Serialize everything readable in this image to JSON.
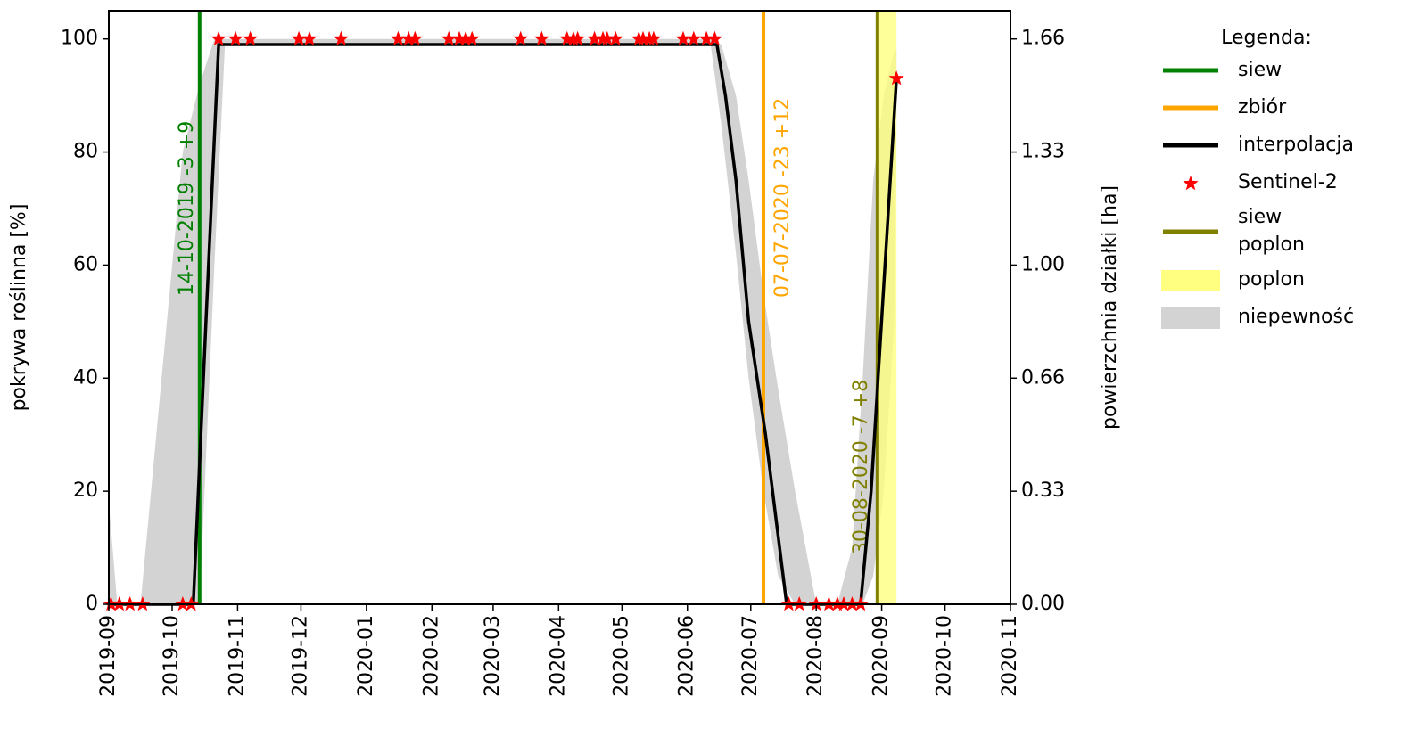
{
  "chart_data": {
    "type": "line",
    "y_label": "pokrywa roślinna [%]",
    "y2_label": "powierzchnia działki [ha]",
    "xlim": [
      18140,
      18567
    ],
    "xticks": [
      {
        "value": 18140,
        "label": "2019-09"
      },
      {
        "value": 18170,
        "label": "2019-10"
      },
      {
        "value": 18201,
        "label": "2019-11"
      },
      {
        "value": 18231,
        "label": "2019-12"
      },
      {
        "value": 18262,
        "label": "2020-01"
      },
      {
        "value": 18293,
        "label": "2020-02"
      },
      {
        "value": 18322,
        "label": "2020-03"
      },
      {
        "value": 18353,
        "label": "2020-04"
      },
      {
        "value": 18383,
        "label": "2020-05"
      },
      {
        "value": 18414,
        "label": "2020-06"
      },
      {
        "value": 18444,
        "label": "2020-07"
      },
      {
        "value": 18475,
        "label": "2020-08"
      },
      {
        "value": 18506,
        "label": "2020-09"
      },
      {
        "value": 18536,
        "label": "2020-10"
      },
      {
        "value": 18567,
        "label": "2020-11"
      }
    ],
    "ylim": [
      0,
      105
    ],
    "yticks": [
      0,
      20,
      40,
      60,
      80,
      100
    ],
    "y2lim": [
      0,
      1.743
    ],
    "y2ticks": [
      {
        "value": 0,
        "label": "0.00"
      },
      {
        "value": 0.332,
        "label": "0.33"
      },
      {
        "value": 0.664,
        "label": "0.66"
      },
      {
        "value": 0.996,
        "label": "1.00"
      },
      {
        "value": 1.328,
        "label": "1.33"
      },
      {
        "value": 1.66,
        "label": "1.66"
      }
    ],
    "legend_title": "Legenda:",
    "legend": "outside right",
    "series": [
      {
        "name": "siew",
        "type": "vline",
        "color": "#008000",
        "x": 18183,
        "annotation": "14-10-2019 -3 +9"
      },
      {
        "name": "zbiór",
        "type": "vline",
        "color": "#ffa500",
        "x": 18450,
        "annotation": "07-07-2020 -23 +12"
      },
      {
        "name": "interpolacja",
        "type": "line",
        "color": "#000000",
        "x": [
          18140,
          18180,
          18186,
          18192,
          18428,
          18432,
          18437,
          18443,
          18451,
          18456,
          18461,
          18496,
          18501,
          18513
        ],
        "values": [
          0,
          0,
          50,
          99,
          99,
          90,
          75,
          50,
          30,
          15,
          0,
          0,
          20,
          93
        ]
      },
      {
        "name": "Sentinel-2",
        "type": "scatter",
        "marker": "star",
        "color": "#ff0000",
        "x": [
          18141,
          18145,
          18150,
          18156,
          18175,
          18179,
          18192,
          18200,
          18207,
          18230,
          18235,
          18250,
          18277,
          18282,
          18285,
          18301,
          18306,
          18309,
          18312,
          18335,
          18345,
          18357,
          18360,
          18362,
          18370,
          18374,
          18376,
          18380,
          18391,
          18393,
          18396,
          18398,
          18412,
          18417,
          18423,
          18427,
          18462,
          18467,
          18475,
          18481,
          18485,
          18488,
          18492,
          18496,
          18513
        ],
        "values": [
          0,
          0,
          0,
          0,
          0,
          0,
          100,
          100,
          100,
          100,
          100,
          100,
          100,
          100,
          100,
          100,
          100,
          100,
          100,
          100,
          100,
          100,
          100,
          100,
          100,
          100,
          100,
          100,
          100,
          100,
          100,
          100,
          100,
          100,
          100,
          100,
          0,
          0,
          0,
          0,
          0,
          0,
          0,
          0,
          93
        ]
      },
      {
        "name": "siew\npoplon",
        "type": "vline",
        "color": "#808000",
        "x": 18504,
        "annotation": "30-08-2020 -7 +8"
      },
      {
        "name": "poplon",
        "type": "span",
        "color": "#ffff80",
        "x": [
          18504,
          18513
        ]
      },
      {
        "name": "niepewność",
        "type": "band",
        "color": "#d3d3d3",
        "x": [
          18140,
          18144,
          18155,
          18165,
          18175,
          18183,
          18190,
          18195,
          18425,
          18430,
          18437,
          18443,
          18450,
          18457,
          18465,
          18475,
          18485,
          18492,
          18497,
          18502,
          18507,
          18512,
          18513
        ],
        "upper": [
          18,
          0,
          0,
          40,
          80,
          92,
          100,
          100,
          100,
          99,
          90,
          75,
          55,
          38,
          20,
          0,
          0,
          10,
          40,
          75,
          90,
          98,
          98
        ],
        "lower": [
          0,
          0,
          0,
          0,
          0,
          0,
          60,
          99,
          99,
          85,
          62,
          40,
          20,
          5,
          0,
          0,
          0,
          0,
          0,
          5,
          20,
          50,
          85
        ]
      }
    ]
  }
}
